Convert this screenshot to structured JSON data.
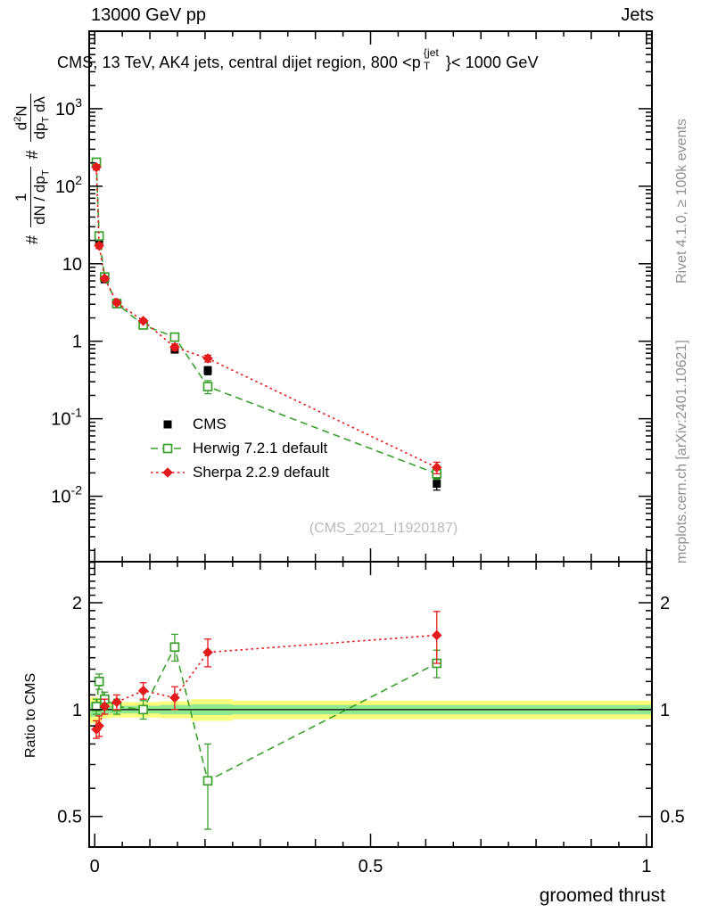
{
  "header": {
    "left": "13000 GeV pp",
    "right": "Jets"
  },
  "title": {
    "part1": "CMS, 13 TeV, AK4 jets, central dijet region, 800 <p",
    "sup": "{jet",
    "sub": "T",
    "part2": "}< 1000 GeV"
  },
  "ylabel_main": {
    "hash1": "#",
    "frac1": {
      "num": "1",
      "den_a": "dN / dp",
      "den_sub": "T"
    },
    "hash2": "#",
    "frac2": {
      "num_a": "d",
      "num_sup": "2",
      "num_b": "N",
      "den_a": "dp",
      "den_sub": "T",
      "den_b": " dλ"
    }
  },
  "side_notes": {
    "rivet": "Rivet 4.1.0, ≥ 100k events",
    "mcplots": "mcplots.cern.ch [arXiv:2401.10621]"
  },
  "watermark": "(CMS_2021_I1920187)",
  "chart_data": {
    "type": "scatter",
    "title_plain": "CMS, 13 TeV, AK4 jets, central dijet region, 800 < pT^{jet} < 1000 GeV",
    "xlabel": "groomed thrust",
    "xlim": [
      -0.01,
      1.01
    ],
    "xticks": [
      {
        "value": 0,
        "label": "0"
      },
      {
        "value": 0.5,
        "label": "0.5"
      },
      {
        "value": 1,
        "label": "1"
      }
    ],
    "panels": [
      {
        "id": "main",
        "yscale": "log",
        "ylim": [
          0.00143,
          10000
        ],
        "yticks": [
          {
            "value": 1000,
            "base": "10",
            "exp": "3"
          },
          {
            "value": 100,
            "base": "10",
            "exp": "2"
          },
          {
            "value": 10,
            "base": "10",
            "exp": ""
          },
          {
            "value": 1,
            "base": "1",
            "exp": ""
          },
          {
            "value": 0.1,
            "base": "10",
            "exp": "-1"
          },
          {
            "value": 0.01,
            "base": "10",
            "exp": "-2"
          }
        ],
        "series": [
          {
            "key": "cms",
            "name": "CMS",
            "color": "#000000",
            "marker": "square-filled",
            "line": "none",
            "x": [
              0.003,
              0.008,
              0.018,
              0.04,
              0.088,
              0.145,
              0.205,
              0.62
            ],
            "y": [
              200,
              19,
              6.3,
              3.0,
              1.62,
              0.78,
              0.42,
              0.0145
            ],
            "yerr": [
              20,
              1.8,
              0.5,
              0.2,
              0.1,
              0.06,
              0.05,
              0.0025
            ]
          },
          {
            "key": "herwig",
            "name": "Herwig 7.2.1 default",
            "color": "#3aa02c",
            "marker": "square-open",
            "line": "dashed",
            "x": [
              0.003,
              0.008,
              0.018,
              0.04,
              0.088,
              0.145,
              0.205,
              0.62
            ],
            "y": [
              204,
              22.8,
              6.75,
              3.06,
              1.62,
              1.13,
              0.26,
              0.0195
            ],
            "yerr": [
              14,
              1.6,
              0.45,
              0.18,
              0.1,
              0.13,
              0.05,
              0.003
            ]
          },
          {
            "key": "sherpa",
            "name": "Sherpa 2.2.9 default",
            "color": "#e41a1c",
            "marker": "diamond-filled",
            "line": "dotted",
            "x": [
              0.003,
              0.008,
              0.018,
              0.04,
              0.088,
              0.145,
              0.205,
              0.62
            ],
            "y": [
              176,
              17.1,
              6.45,
              3.15,
              1.83,
              0.84,
              0.6,
              0.0235
            ],
            "yerr": [
              14,
              1.4,
              0.45,
              0.18,
              0.11,
              0.08,
              0.06,
              0.004
            ]
          }
        ]
      },
      {
        "id": "ratio",
        "ylabel": "Ratio to CMS",
        "yscale": "log",
        "ylim": [
          0.41,
          2.61
        ],
        "refline": 1,
        "yticks": [
          {
            "value": 2,
            "label": "2"
          },
          {
            "value": 1,
            "label": "1"
          },
          {
            "value": 0.5,
            "label": "0.5"
          }
        ],
        "bands": {
          "yellow": "#fdfd7c",
          "green": "#90e890",
          "bins": [
            {
              "x0": -0.01,
              "x1": 0.006,
              "ylo": 0.915,
              "yhi": 1.085,
              "glo": 0.955,
              "ghi": 1.045
            },
            {
              "x0": 0.006,
              "x1": 0.013,
              "ylo": 0.925,
              "yhi": 1.075,
              "glo": 0.96,
              "ghi": 1.04
            },
            {
              "x0": 0.013,
              "x1": 0.028,
              "ylo": 0.945,
              "yhi": 1.055,
              "glo": 0.97,
              "ghi": 1.03
            },
            {
              "x0": 0.028,
              "x1": 0.062,
              "ylo": 0.95,
              "yhi": 1.05,
              "glo": 0.975,
              "ghi": 1.025
            },
            {
              "x0": 0.062,
              "x1": 0.118,
              "ylo": 0.95,
              "yhi": 1.05,
              "glo": 0.975,
              "ghi": 1.025
            },
            {
              "x0": 0.118,
              "x1": 0.175,
              "ylo": 0.945,
              "yhi": 1.055,
              "glo": 0.97,
              "ghi": 1.03
            },
            {
              "x0": 0.175,
              "x1": 0.25,
              "ylo": 0.93,
              "yhi": 1.07,
              "glo": 0.965,
              "ghi": 1.035
            },
            {
              "x0": 0.25,
              "x1": 1.01,
              "ylo": 0.94,
              "yhi": 1.06,
              "glo": 0.97,
              "ghi": 1.03
            }
          ]
        },
        "series": [
          {
            "key": "herwig",
            "name": "Herwig 7.2.1 default",
            "color": "#3aa02c",
            "marker": "square-open",
            "line": "dashed",
            "x": [
              0.003,
              0.008,
              0.018,
              0.04,
              0.088,
              0.145,
              0.205,
              0.62
            ],
            "y": [
              1.02,
              1.2,
              1.07,
              1.02,
              1.0,
              1.5,
              0.63,
              1.35
            ],
            "yerr": [
              0.05,
              0.06,
              0.05,
              0.05,
              0.06,
              0.13,
              0.17,
              0.12
            ]
          },
          {
            "key": "sherpa",
            "name": "Sherpa 2.2.9 default",
            "color": "#e41a1c",
            "marker": "diamond-filled",
            "line": "dotted",
            "x": [
              0.003,
              0.008,
              0.018,
              0.04,
              0.088,
              0.145,
              0.205,
              0.62
            ],
            "y": [
              0.88,
              0.9,
              1.02,
              1.05,
              1.13,
              1.08,
              1.45,
              1.62
            ],
            "yerr": [
              0.05,
              0.06,
              0.05,
              0.05,
              0.06,
              0.08,
              0.13,
              0.27
            ]
          }
        ]
      }
    ]
  }
}
